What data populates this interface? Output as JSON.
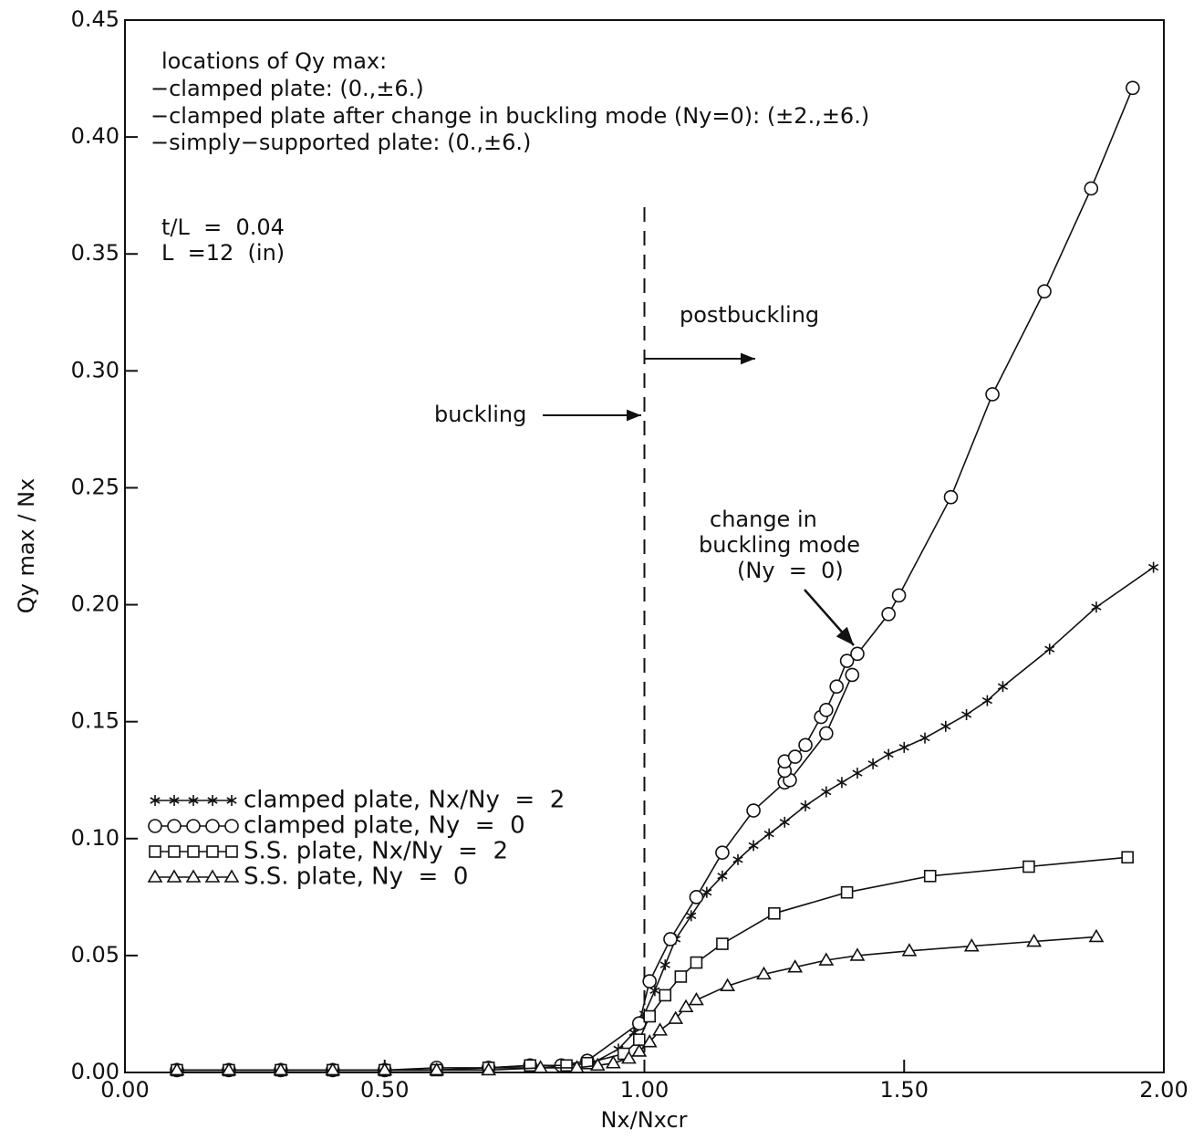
{
  "chart_data": {
    "type": "line",
    "x_label": "Nx/Nxcr",
    "y_label": "Qy max / Nx",
    "xlim": [
      0,
      2
    ],
    "ylim": [
      0,
      0.45
    ],
    "xticks": [
      {
        "value": 0,
        "label": "0.00"
      },
      {
        "value": 0.5,
        "label": "0.50"
      },
      {
        "value": 1,
        "label": "1.00"
      },
      {
        "value": 1.5,
        "label": "1.50"
      },
      {
        "value": 2,
        "label": "2.00"
      }
    ],
    "yticks": [
      {
        "value": 0,
        "label": "0.00"
      },
      {
        "value": 0.05,
        "label": "0.05"
      },
      {
        "value": 0.1,
        "label": "0.10"
      },
      {
        "value": 0.15,
        "label": "0.15"
      },
      {
        "value": 0.2,
        "label": "0.20"
      },
      {
        "value": 0.25,
        "label": "0.25"
      },
      {
        "value": 0.3,
        "label": "0.30"
      },
      {
        "value": 0.35,
        "label": "0.35"
      },
      {
        "value": 0.4,
        "label": "0.40"
      },
      {
        "value": 0.45,
        "label": "0.45"
      }
    ],
    "vline": 1,
    "legend": "lower left",
    "color": "#111111",
    "annotations": [
      "locations of Qy max:",
      "−clamped plate: (0.,±6.)",
      "−clamped plate after change in buckling mode (Ny=0): (±2.,±6.)",
      "−simply−supported plate: (0.,±6.)",
      "t/L  =  0.04",
      "L  =12  (in)",
      "postbuckling",
      "buckling",
      "change in",
      "buckling mode",
      "(Ny  =  0)"
    ],
    "series": [
      {
        "name": "clamped plate, Nx/Ny  =  2",
        "marker": "star",
        "x": [
          0.1,
          0.2,
          0.3,
          0.4,
          0.5,
          0.6,
          0.7,
          0.8,
          0.9,
          0.95,
          0.98,
          1.0,
          1.02,
          1.04,
          1.06,
          1.09,
          1.12,
          1.15,
          1.18,
          1.21,
          1.24,
          1.27,
          1.31,
          1.35,
          1.38,
          1.41,
          1.44,
          1.47,
          1.5,
          1.54,
          1.58,
          1.62,
          1.66,
          1.69,
          1.78,
          1.87,
          1.98
        ],
        "values": [
          0.001,
          0.001,
          0.001,
          0.001,
          0.001,
          0.001,
          0.002,
          0.002,
          0.004,
          0.01,
          0.017,
          0.025,
          0.035,
          0.046,
          0.057,
          0.067,
          0.077,
          0.084,
          0.091,
          0.097,
          0.102,
          0.107,
          0.114,
          0.12,
          0.124,
          0.128,
          0.132,
          0.136,
          0.139,
          0.143,
          0.148,
          0.153,
          0.159,
          0.165,
          0.181,
          0.199,
          0.216
        ]
      },
      {
        "name": "clamped plate, Ny  =  0",
        "marker": "circle",
        "x": [
          0.1,
          0.2,
          0.3,
          0.4,
          0.5,
          0.6,
          0.7,
          0.78,
          0.84,
          0.89,
          0.99,
          1.01,
          1.05,
          1.1,
          1.15,
          1.21,
          1.27,
          1.28,
          1.35,
          1.4,
          1.27,
          1.27,
          1.27,
          1.29,
          1.31,
          1.34,
          1.35,
          1.37,
          1.39,
          1.41,
          1.47,
          1.49,
          1.59,
          1.67,
          1.77,
          1.86,
          1.94
        ],
        "values": [
          0.001,
          0.001,
          0.001,
          0.001,
          0.001,
          0.002,
          0.002,
          0.003,
          0.003,
          0.005,
          0.021,
          0.039,
          0.057,
          0.075,
          0.094,
          0.112,
          0.124,
          0.125,
          0.145,
          0.17,
          null,
          0.129,
          0.133,
          0.135,
          0.14,
          0.152,
          0.155,
          0.165,
          0.176,
          0.179,
          0.196,
          0.204,
          0.246,
          0.29,
          0.334,
          0.378,
          0.421
        ]
      },
      {
        "name": "S.S. plate, Nx/Ny  =  2",
        "marker": "square",
        "x": [
          0.1,
          0.2,
          0.3,
          0.4,
          0.5,
          0.6,
          0.7,
          0.78,
          0.85,
          0.89,
          0.96,
          0.99,
          1.01,
          1.04,
          1.07,
          1.1,
          1.15,
          1.25,
          1.39,
          1.55,
          1.74,
          1.93
        ],
        "values": [
          0.001,
          0.001,
          0.001,
          0.001,
          0.001,
          0.001,
          0.002,
          0.003,
          0.003,
          0.004,
          0.008,
          0.014,
          0.024,
          0.033,
          0.041,
          0.047,
          0.055,
          0.068,
          0.077,
          0.084,
          0.088,
          0.092
        ]
      },
      {
        "name": "S.S. plate, Ny  =  0",
        "marker": "triangle",
        "x": [
          0.1,
          0.2,
          0.3,
          0.4,
          0.5,
          0.6,
          0.7,
          0.8,
          0.87,
          0.91,
          0.94,
          0.97,
          0.99,
          1.01,
          1.03,
          1.06,
          1.08,
          1.1,
          1.16,
          1.23,
          1.29,
          1.35,
          1.41,
          1.51,
          1.63,
          1.75,
          1.87
        ],
        "values": [
          0.001,
          0.001,
          0.001,
          0.001,
          0.001,
          0.001,
          0.001,
          0.002,
          0.002,
          0.003,
          0.004,
          0.006,
          0.009,
          0.013,
          0.018,
          0.023,
          0.028,
          0.031,
          0.037,
          0.042,
          0.045,
          0.048,
          0.05,
          0.052,
          0.054,
          0.056,
          0.058
        ]
      }
    ]
  }
}
